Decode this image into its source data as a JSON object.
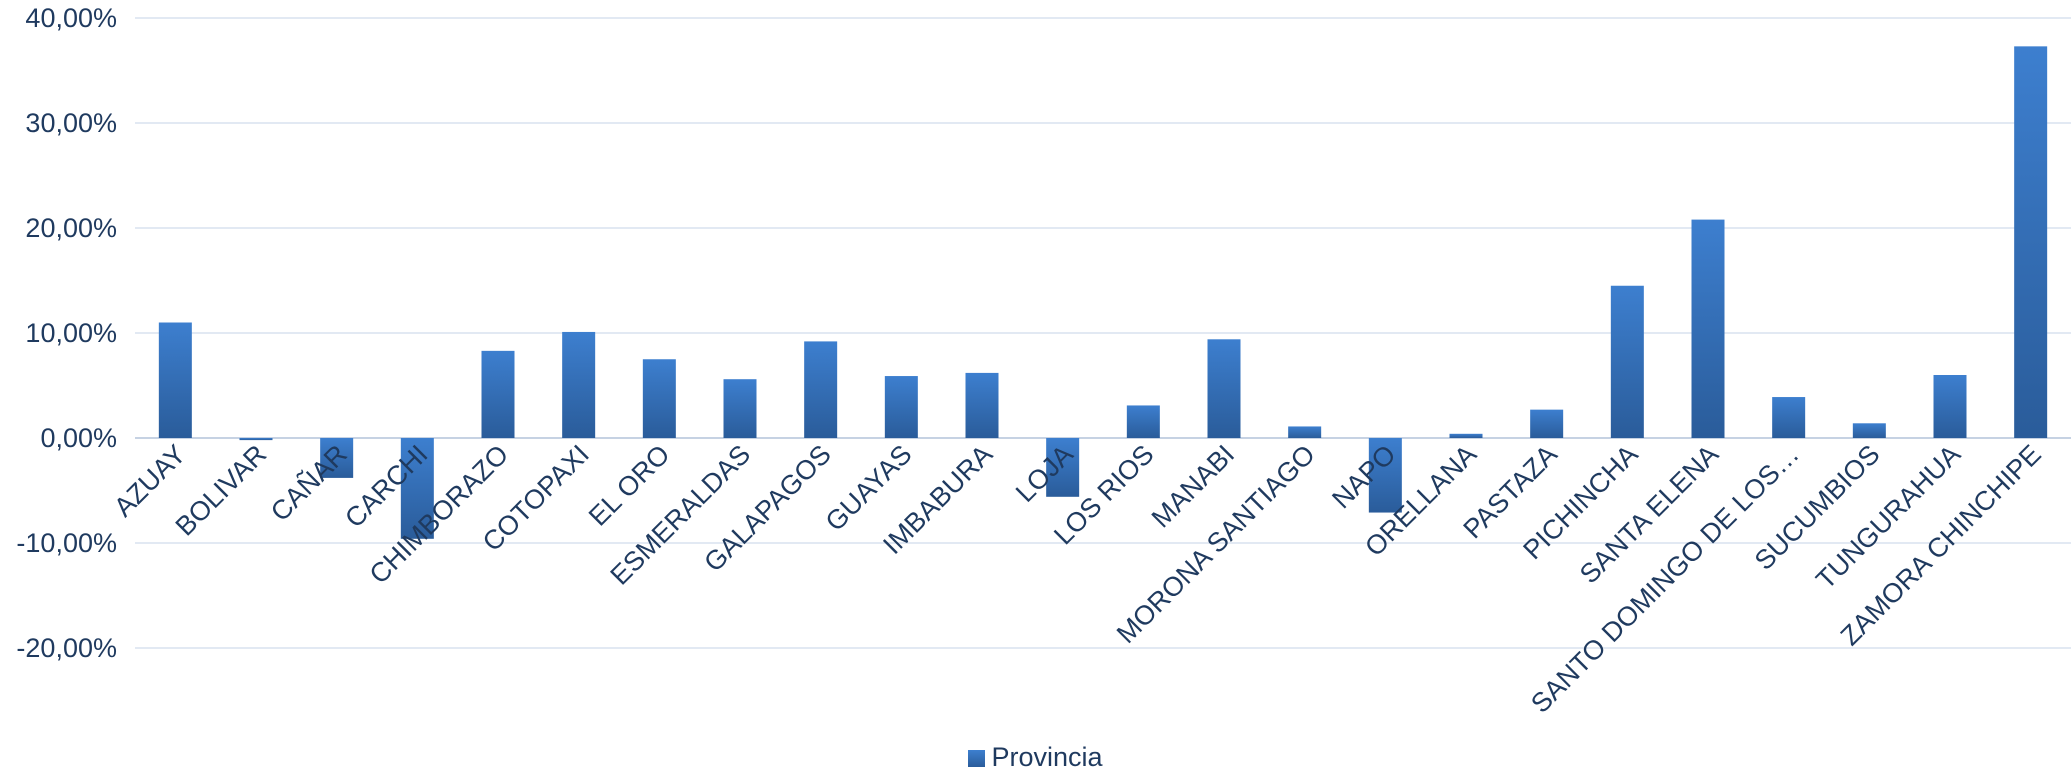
{
  "chart_data": {
    "type": "bar",
    "categories": [
      "AZUAY",
      "BOLIVAR",
      "CAÑAR",
      "CARCHI",
      "CHIMBORAZO",
      "COTOPAXI",
      "EL ORO",
      "ESMERALDAS",
      "GALAPAGOS",
      "GUAYAS",
      "IMBABURA",
      "LOJA",
      "LOS RIOS",
      "MANABI",
      "MORONA SANTIAGO",
      "NAPO",
      "ORELLANA",
      "PASTAZA",
      "PICHINCHA",
      "SANTA ELENA",
      "SANTO DOMINGO DE LOS…",
      "SUCUMBIOS",
      "TUNGURAHUA",
      "ZAMORA CHINCHIPE"
    ],
    "series": [
      {
        "name": "Provincia",
        "values": [
          11.0,
          -0.2,
          -3.8,
          -9.6,
          8.3,
          10.1,
          7.5,
          5.6,
          9.2,
          5.9,
          6.2,
          -5.6,
          3.1,
          9.4,
          1.1,
          -7.1,
          0.4,
          2.7,
          14.5,
          20.8,
          3.9,
          1.4,
          6.0,
          37.3
        ]
      }
    ],
    "ylim": [
      -20,
      40
    ],
    "yticks": [
      40,
      30,
      20,
      10,
      0,
      -10,
      -20
    ],
    "ytick_labels": [
      "40,00%",
      "30,00%",
      "20,00%",
      "10,00%",
      "0,00%",
      "-10,00%",
      "-20,00%"
    ],
    "grid": true,
    "legend_position": "bottom",
    "colors": {
      "bar_top": "#3d7fcf",
      "bar_bottom": "#2a5c9a",
      "text": "#1f3a5f",
      "grid": "#d9e2ef"
    }
  }
}
